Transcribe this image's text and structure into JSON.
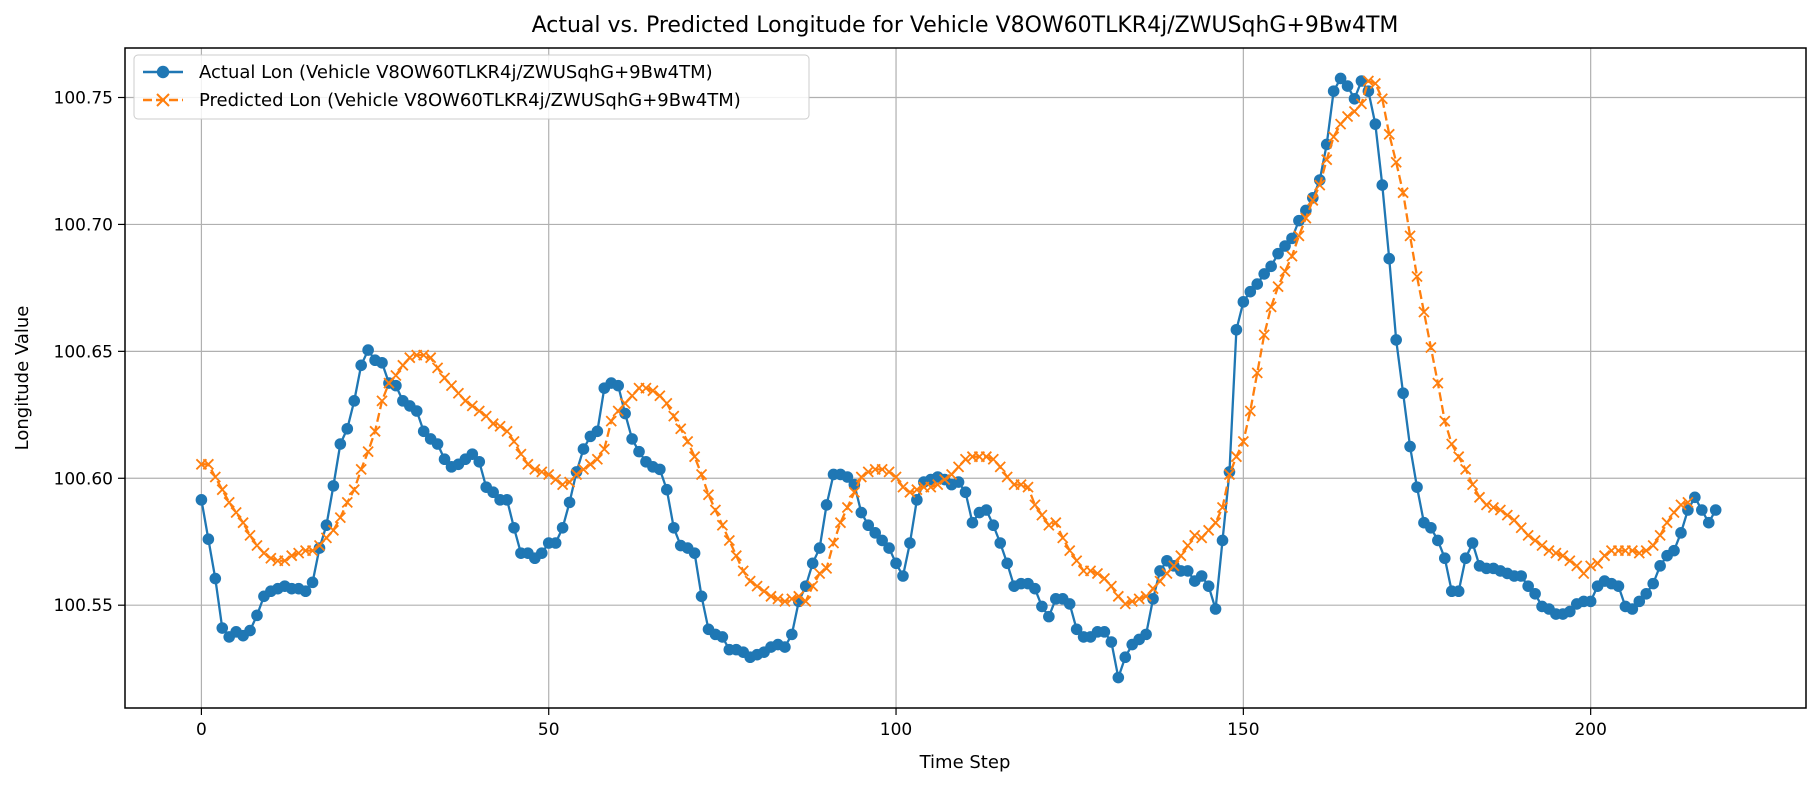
{
  "chart_data": {
    "type": "line",
    "title": "Actual vs. Predicted Longitude for Vehicle V8OW60TLKR4j/ZWUSqhG+9Bw4TM",
    "xlabel": "Time Step",
    "ylabel": "Longitude Value",
    "xlim": [
      -11,
      231
    ],
    "ylim": [
      100.5095,
      100.7695
    ],
    "x_ticks": [
      0,
      50,
      100,
      150,
      200
    ],
    "y_ticks": [
      100.55,
      100.6,
      100.65,
      100.7,
      100.75
    ],
    "x_tick_labels": [
      "0",
      "50",
      "100",
      "150",
      "200"
    ],
    "y_tick_labels": [
      "100.55",
      "100.60",
      "100.65",
      "100.70",
      "100.75"
    ],
    "grid": true,
    "legend_position": "upper-left",
    "series": [
      {
        "name": "Actual Lon (Vehicle V8OW60TLKR4j/ZWUSqhG+9Bw4TM)",
        "color": "#1f77b4",
        "line_style": "solid",
        "marker": "circle",
        "x_start": 0,
        "values": [
          100.5915,
          100.576,
          100.5605,
          100.541,
          100.5375,
          100.5395,
          100.538,
          100.54,
          100.546,
          100.5535,
          100.5555,
          100.5565,
          100.5575,
          100.5565,
          100.5565,
          100.5555,
          100.559,
          100.5725,
          100.5815,
          100.597,
          100.6135,
          100.6195,
          100.6305,
          100.6445,
          100.6505,
          100.6465,
          100.6455,
          100.6375,
          100.6365,
          100.6305,
          100.6285,
          100.6265,
          100.6185,
          100.6155,
          100.6135,
          100.6075,
          100.6045,
          100.6055,
          100.6075,
          100.6095,
          100.6065,
          100.5965,
          100.5945,
          100.5915,
          100.5915,
          100.5805,
          100.5705,
          100.5705,
          100.5685,
          100.5705,
          100.5745,
          100.5745,
          100.5805,
          100.5905,
          100.6025,
          100.6115,
          100.6165,
          100.6185,
          100.6355,
          100.6375,
          100.6365,
          100.6255,
          100.6155,
          100.6105,
          100.6065,
          100.6045,
          100.6035,
          100.5955,
          100.5805,
          100.5735,
          100.5725,
          100.5705,
          100.5535,
          100.5405,
          100.5385,
          100.5375,
          100.5325,
          100.5325,
          100.5315,
          100.5295,
          100.5305,
          100.5315,
          100.5335,
          100.5345,
          100.5335,
          100.5385,
          100.5515,
          100.5575,
          100.5665,
          100.5725,
          100.5895,
          100.6015,
          100.6015,
          100.6005,
          100.5975,
          100.5865,
          100.5815,
          100.5785,
          100.5755,
          100.5725,
          100.5665,
          100.5615,
          100.5745,
          100.5915,
          100.5985,
          100.5995,
          100.6005,
          100.5995,
          100.5975,
          100.5985,
          100.5945,
          100.5825,
          100.5865,
          100.5875,
          100.5815,
          100.5745,
          100.5665,
          100.5575,
          100.5585,
          100.5585,
          100.5565,
          100.5495,
          100.5455,
          100.5525,
          100.5525,
          100.5505,
          100.5405,
          100.5375,
          100.5375,
          100.5395,
          100.5395,
          100.5355,
          100.5215,
          100.5295,
          100.5345,
          100.5365,
          100.5385,
          100.5525,
          100.5635,
          100.5675,
          100.5655,
          100.5635,
          100.5635,
          100.5595,
          100.5615,
          100.5575,
          100.5485,
          100.5755,
          100.6025,
          100.6585,
          100.6695,
          100.6735,
          100.6765,
          100.6805,
          100.6835,
          100.6885,
          100.6915,
          100.6945,
          100.7015,
          100.7055,
          100.7105,
          100.7175,
          100.7315,
          100.7525,
          100.7575,
          100.7545,
          100.7495,
          100.7565,
          100.7525,
          100.7395,
          100.7155,
          100.6865,
          100.6545,
          100.6335,
          100.6125,
          100.5965,
          100.5825,
          100.5805,
          100.5755,
          100.5685,
          100.5555,
          100.5555,
          100.5685,
          100.5745,
          100.5655,
          100.5645,
          100.5645,
          100.5635,
          100.5625,
          100.5615,
          100.5615,
          100.5575,
          100.5545,
          100.5495,
          100.5485,
          100.5465,
          100.5465,
          100.5475,
          100.5505,
          100.5515,
          100.5515,
          100.5575,
          100.5595,
          100.5585,
          100.5575,
          100.5495,
          100.5485,
          100.5515,
          100.5545,
          100.5585,
          100.5655,
          100.5695,
          100.5715,
          100.5785,
          100.5875,
          100.5925,
          100.5875,
          100.5825,
          100.5875
        ]
      },
      {
        "name": "Predicted Lon (Vehicle V8OW60TLKR4j/ZWUSqhG+9Bw4TM)",
        "color": "#ff7f0e",
        "line_style": "dashed",
        "marker": "x",
        "x_start": 0,
        "values": [
          100.6055,
          100.6055,
          100.6005,
          100.5955,
          100.5905,
          100.5865,
          100.5825,
          100.5775,
          100.5735,
          100.5705,
          100.5685,
          100.5675,
          100.5675,
          100.5695,
          100.5705,
          100.5715,
          100.5715,
          100.5735,
          100.5765,
          100.5795,
          100.5845,
          100.5905,
          100.5955,
          100.6035,
          100.6105,
          100.6185,
          100.6305,
          100.6375,
          100.6405,
          100.6445,
          100.6475,
          100.6485,
          100.6485,
          100.6475,
          100.6435,
          100.6395,
          100.6365,
          100.6335,
          100.6305,
          100.6285,
          100.6265,
          100.6245,
          100.6215,
          100.6205,
          100.6185,
          100.6145,
          100.6095,
          100.6055,
          100.6035,
          100.6025,
          100.6015,
          100.5995,
          100.5975,
          100.5985,
          100.6015,
          100.6035,
          100.6055,
          100.6075,
          100.6115,
          100.6225,
          100.6265,
          100.6295,
          100.6325,
          100.6355,
          100.6355,
          100.6345,
          100.6325,
          100.6295,
          100.6245,
          100.6195,
          100.6145,
          100.6085,
          100.6015,
          100.5935,
          100.5875,
          100.5815,
          100.5755,
          100.5695,
          100.5635,
          100.5595,
          100.5575,
          100.5555,
          100.5535,
          100.5525,
          100.5515,
          100.5525,
          100.5535,
          100.5515,
          100.5575,
          100.5625,
          100.5645,
          100.5745,
          100.5825,
          100.5885,
          100.5945,
          100.6005,
          100.6025,
          100.6035,
          100.6035,
          100.6025,
          100.6005,
          100.5965,
          100.5945,
          100.5955,
          100.5965,
          100.5965,
          100.5975,
          100.5995,
          100.6015,
          100.6045,
          100.6075,
          100.6085,
          100.6085,
          100.6085,
          100.6075,
          100.6045,
          100.6005,
          100.5975,
          100.5975,
          100.5965,
          100.5895,
          100.5855,
          100.5815,
          100.5825,
          100.5765,
          100.5715,
          100.5675,
          100.5635,
          100.5635,
          100.5625,
          100.5605,
          100.5575,
          100.5535,
          100.5505,
          100.5515,
          100.5525,
          100.5535,
          100.5565,
          100.5595,
          100.5625,
          100.5655,
          100.5695,
          100.5735,
          100.5775,
          100.5765,
          100.5795,
          100.5825,
          100.5885,
          100.6015,
          100.6085,
          100.6145,
          100.6265,
          100.6415,
          100.6565,
          100.6675,
          100.6755,
          100.6815,
          100.6875,
          100.6955,
          100.7025,
          100.7095,
          100.7155,
          100.7255,
          100.7345,
          100.7395,
          100.7425,
          100.7445,
          100.7475,
          100.7565,
          100.7555,
          100.7495,
          100.7355,
          100.7245,
          100.7125,
          100.6955,
          100.6795,
          100.6655,
          100.6515,
          100.6375,
          100.6225,
          100.6135,
          100.6085,
          100.6035,
          100.5975,
          100.5925,
          100.5895,
          100.5885,
          100.5875,
          100.5855,
          100.5835,
          100.5805,
          100.5775,
          100.5755,
          100.5735,
          100.5715,
          100.5705,
          100.5695,
          100.5675,
          100.5655,
          100.5625,
          100.5655,
          100.5665,
          100.5695,
          100.5715,
          100.5715,
          100.5715,
          100.5715,
          100.5705,
          100.5715,
          100.5735,
          100.5775,
          100.5825,
          100.5865,
          100.5895,
          100.5905
        ]
      }
    ]
  }
}
